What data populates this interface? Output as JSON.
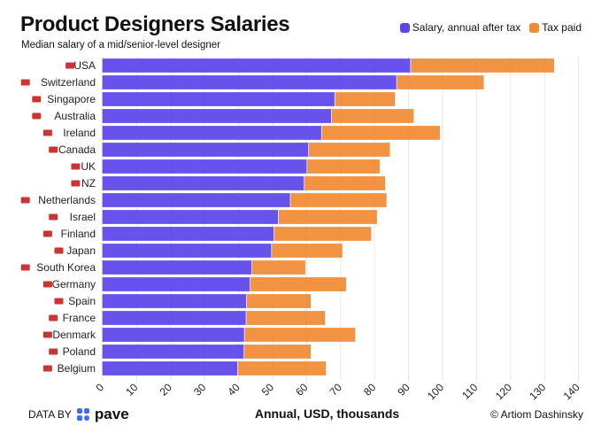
{
  "chart_data": {
    "type": "bar",
    "orientation": "horizontal",
    "stacked": true,
    "title": "Product Designers Salaries",
    "subtitle": "Median salary of a mid/senior-level designer",
    "xlabel": "Annual, USD, thousands",
    "xlim": [
      0,
      140
    ],
    "xticks": [
      0,
      10,
      20,
      30,
      40,
      50,
      60,
      70,
      80,
      90,
      100,
      110,
      120,
      130,
      140
    ],
    "grid": true,
    "legend_position": "top-right",
    "categories": [
      "USA",
      "Switzerland",
      "Singapore",
      "Australia",
      "Ireland",
      "Canada",
      "UK",
      "NZ",
      "Netherlands",
      "Israel",
      "Finland",
      "Japan",
      "South Korea",
      "Germany",
      "Spain",
      "France",
      "Denmark",
      "Poland",
      "Belgium"
    ],
    "series": [
      {
        "name": "Salary, annual after tax",
        "color": "#5b45ea",
        "values": [
          90.4,
          86.3,
          68.1,
          67.1,
          64.2,
          60.4,
          59.9,
          59.1,
          55.0,
          51.5,
          50.2,
          49.5,
          43.7,
          43.2,
          42.1,
          42.0,
          41.5,
          41.4,
          39.5
        ]
      },
      {
        "name": "Tax paid",
        "color": "#f08a33",
        "values": [
          42.3,
          25.7,
          17.8,
          24.3,
          34.9,
          24.0,
          21.5,
          23.9,
          28.4,
          29.1,
          28.7,
          20.9,
          15.8,
          28.3,
          19.0,
          23.3,
          32.7,
          19.7,
          26.1
        ]
      }
    ]
  },
  "footer": {
    "data_by": "DATA BY",
    "source_logo": "pave",
    "credit": "© Artiom Dashinsky"
  }
}
